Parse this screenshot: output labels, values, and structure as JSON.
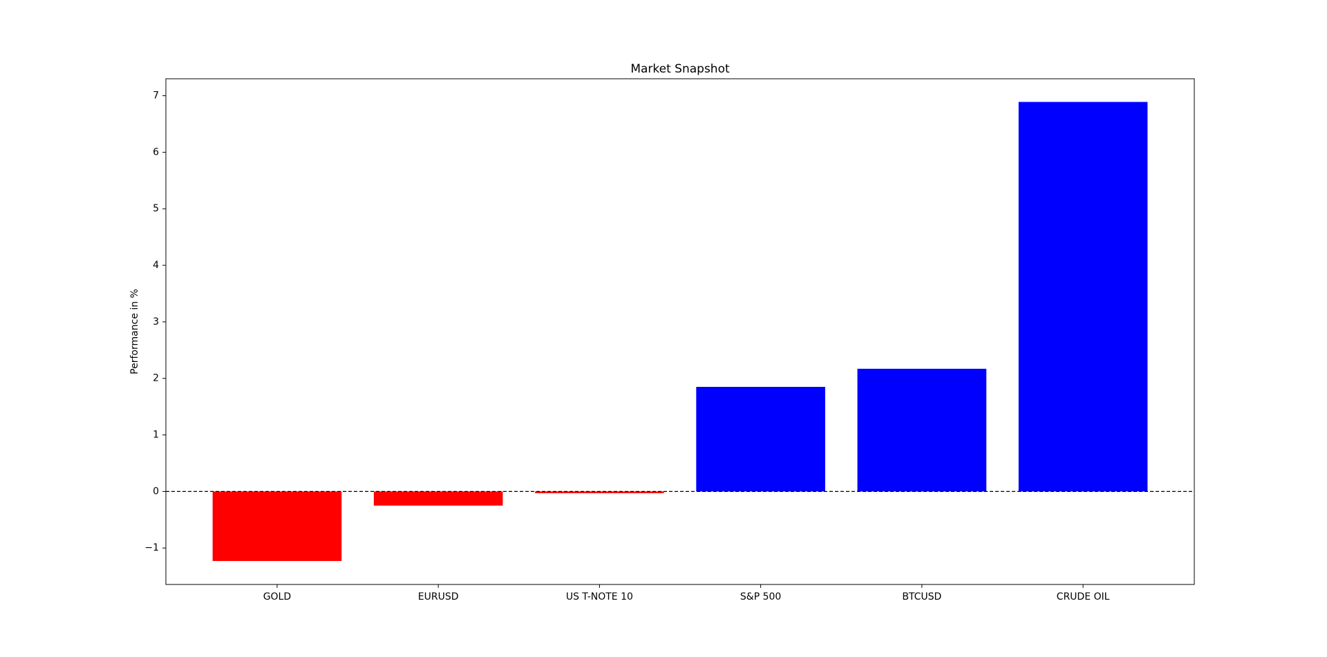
{
  "chart_data": {
    "type": "bar",
    "title": "Market Snapshot",
    "ylabel": "Performance in %",
    "categories": [
      "GOLD",
      "EURUSD",
      "US T-NOTE 10",
      "S&P 500",
      "BTCUSD",
      "CRUDE OIL"
    ],
    "values": [
      -1.23,
      -0.25,
      -0.03,
      1.85,
      2.17,
      6.89
    ],
    "colors": [
      "#ff0000",
      "#ff0000",
      "#ff0000",
      "#0000ff",
      "#0000ff",
      "#0000ff"
    ],
    "ylim": [
      -1.645,
      7.3
    ],
    "yticks": [
      {
        "value": -1,
        "label": "−1"
      },
      0,
      1,
      2,
      3,
      4,
      5,
      6,
      7
    ],
    "zero_line": true
  }
}
